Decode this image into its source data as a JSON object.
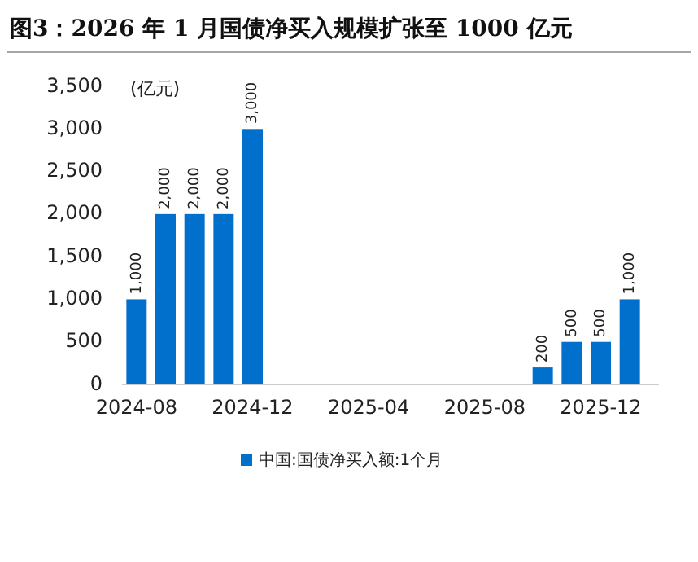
{
  "chart_data": {
    "type": "bar",
    "title": "图3：2026 年 1 月国债净买入规模扩张至 1000 亿元",
    "ylabel": "(亿元)",
    "categories": [
      "2024-08",
      null,
      null,
      null,
      "2024-12",
      null,
      null,
      null,
      "2025-04",
      null,
      null,
      null,
      "2025-08",
      null,
      null,
      null,
      "2025-12",
      null
    ],
    "series": [
      {
        "name": "中国:国债净买入额:1个月",
        "color": "#0070cc",
        "values": [
          1000,
          2000,
          2000,
          2000,
          3000,
          null,
          null,
          null,
          null,
          null,
          null,
          null,
          null,
          null,
          200,
          500,
          500,
          1000
        ],
        "value_labels": [
          "1,000",
          "2,000",
          "2,000",
          "2,000",
          "3,000",
          null,
          null,
          null,
          null,
          null,
          null,
          null,
          null,
          null,
          "200",
          "500",
          "500",
          "1,000"
        ]
      }
    ],
    "ylim": [
      0,
      3500
    ],
    "yticks": [
      0,
      500,
      {
        "value": 1000,
        "label": "1,000"
      },
      {
        "value": 1500,
        "label": "1,500"
      },
      {
        "value": 2000,
        "label": "2,000"
      },
      {
        "value": 2500,
        "label": "2,500"
      },
      {
        "value": 3000,
        "label": "3,000"
      },
      {
        "value": 3500,
        "label": "3,500"
      }
    ],
    "legend": "bottom"
  }
}
